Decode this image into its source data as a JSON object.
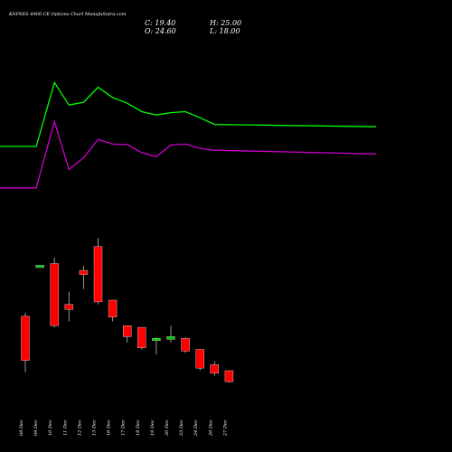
{
  "chart_data": {
    "type": "candlestick",
    "title": "KAYNES 4900 CE Options Chart MunafaSutra.com",
    "ohlc_readout": {
      "close": "C: 19.40",
      "open": "O: 24.60",
      "high": "H: 25.00",
      "low": "L: 18.00"
    },
    "categories": [
      "08 Dec",
      "09 Dec",
      "10 Dec",
      "11 Dec",
      "12 Dec",
      "13 Dec",
      "16 Dec",
      "17 Dec",
      "18 Dec",
      "19 Dec",
      "20 Dec",
      "23 Dec",
      "24 Dec",
      "26 Dec",
      "27 Dec"
    ],
    "candles": [
      {
        "open": 24.6,
        "high": 25.0,
        "low": 18.0,
        "close": 19.4
      },
      {
        "open": 30.6,
        "high": 30.6,
        "low": 30.6,
        "close": 30.6
      },
      {
        "open": 30.8,
        "high": 31.5,
        "low": 23.3,
        "close": 23.5
      },
      {
        "open": 26.0,
        "high": 27.5,
        "low": 24.0,
        "close": 25.4
      },
      {
        "open": 30.0,
        "high": 30.5,
        "low": 27.8,
        "close": 29.5
      },
      {
        "open": 32.8,
        "high": 33.8,
        "low": 26.0,
        "close": 26.3
      },
      {
        "open": 26.5,
        "high": 26.5,
        "low": 24.0,
        "close": 24.5
      },
      {
        "open": 23.5,
        "high": 23.5,
        "low": 21.5,
        "close": 22.2
      },
      {
        "open": 23.3,
        "high": 23.3,
        "low": 20.7,
        "close": 20.9
      },
      {
        "open": 21.9,
        "high": 22.1,
        "low": 20.1,
        "close": 22.0
      },
      {
        "open": 21.9,
        "high": 23.5,
        "low": 21.5,
        "close": 22.2
      },
      {
        "open": 22.0,
        "high": 22.1,
        "low": 20.3,
        "close": 20.5
      },
      {
        "open": 20.7,
        "high": 20.7,
        "low": 18.2,
        "close": 18.5
      },
      {
        "open": 18.9,
        "high": 19.3,
        "low": 17.6,
        "close": 17.9
      },
      {
        "open": 18.2,
        "high": 18.2,
        "low": 16.8,
        "close": 16.9
      }
    ],
    "series": [
      {
        "color": "#00ff00",
        "values": [
          37.2,
          37.2,
          50.8,
          46.0,
          46.6,
          49.8,
          47.6,
          46.4,
          44.6,
          43.9,
          44.4,
          44.6,
          43.3,
          41.9,
          41.4
        ]
      },
      {
        "color": "#cc00cc",
        "values": [
          28.4,
          28.4,
          42.5,
          32.3,
          34.8,
          38.7,
          37.7,
          37.6,
          35.9,
          35.0,
          37.5,
          37.7,
          36.8,
          36.4,
          35.6
        ]
      }
    ],
    "bull_color": "#00cc00",
    "bear_color": "#ff0000",
    "background": "#000000"
  }
}
